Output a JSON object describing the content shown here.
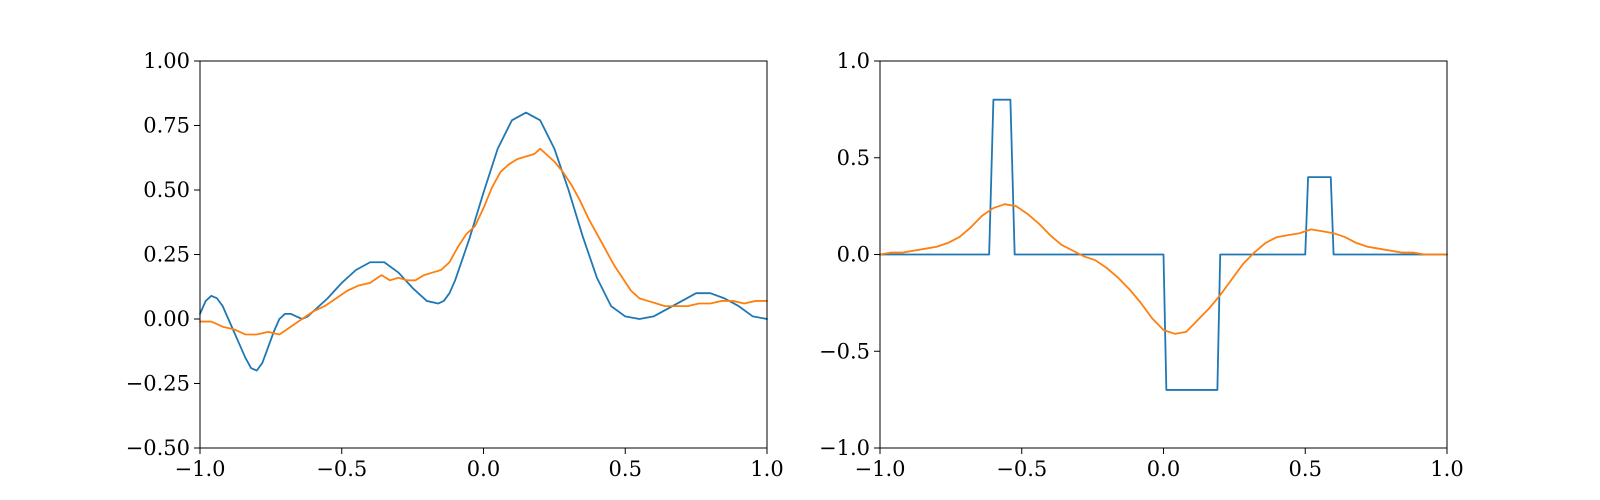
{
  "chart_data": [
    {
      "type": "line",
      "title": "",
      "xlabel": "",
      "ylabel": "",
      "xlim": [
        -1.0,
        1.0
      ],
      "ylim": [
        -0.5,
        1.0
      ],
      "grid": false,
      "xticks": [
        -1.0,
        -0.5,
        0.0,
        0.5,
        1.0
      ],
      "xtick_labels": [
        "−1.0",
        "−0.5",
        "0.0",
        "0.5",
        "1.0"
      ],
      "yticks": [
        -0.5,
        -0.25,
        0.0,
        0.25,
        0.5,
        0.75,
        1.0
      ],
      "ytick_labels": [
        "−0.50",
        "−0.25",
        "0.00",
        "0.25",
        "0.50",
        "0.75",
        "1.00"
      ],
      "series": [
        {
          "color": "#1f77b4",
          "x": [
            -1.0,
            -0.98,
            -0.96,
            -0.94,
            -0.92,
            -0.9,
            -0.88,
            -0.86,
            -0.84,
            -0.82,
            -0.8,
            -0.78,
            -0.76,
            -0.74,
            -0.72,
            -0.7,
            -0.68,
            -0.66,
            -0.64,
            -0.62,
            -0.6,
            -0.55,
            -0.5,
            -0.45,
            -0.4,
            -0.35,
            -0.3,
            -0.25,
            -0.2,
            -0.16,
            -0.14,
            -0.12,
            -0.1,
            -0.05,
            0.0,
            0.05,
            0.1,
            0.15,
            0.2,
            0.25,
            0.3,
            0.35,
            0.4,
            0.45,
            0.5,
            0.55,
            0.6,
            0.65,
            0.7,
            0.75,
            0.8,
            0.85,
            0.9,
            0.95,
            1.0
          ],
          "y": [
            0.02,
            0.07,
            0.09,
            0.08,
            0.05,
            0.0,
            -0.05,
            -0.1,
            -0.15,
            -0.19,
            -0.2,
            -0.17,
            -0.11,
            -0.05,
            0.0,
            0.02,
            0.02,
            0.01,
            0.0,
            0.01,
            0.03,
            0.08,
            0.14,
            0.19,
            0.22,
            0.22,
            0.18,
            0.12,
            0.07,
            0.06,
            0.07,
            0.1,
            0.15,
            0.31,
            0.49,
            0.66,
            0.77,
            0.8,
            0.77,
            0.66,
            0.5,
            0.32,
            0.16,
            0.05,
            0.01,
            0.0,
            0.01,
            0.04,
            0.07,
            0.1,
            0.1,
            0.08,
            0.05,
            0.01,
            0.0
          ]
        },
        {
          "color": "#ff7f0e",
          "x": [
            -1.0,
            -0.96,
            -0.92,
            -0.88,
            -0.84,
            -0.8,
            -0.76,
            -0.72,
            -0.68,
            -0.64,
            -0.6,
            -0.56,
            -0.52,
            -0.48,
            -0.44,
            -0.4,
            -0.36,
            -0.33,
            -0.3,
            -0.27,
            -0.24,
            -0.21,
            -0.18,
            -0.15,
            -0.12,
            -0.09,
            -0.06,
            -0.03,
            0.0,
            0.03,
            0.06,
            0.09,
            0.12,
            0.15,
            0.18,
            0.2,
            0.22,
            0.25,
            0.28,
            0.31,
            0.34,
            0.37,
            0.4,
            0.43,
            0.46,
            0.49,
            0.52,
            0.55,
            0.58,
            0.61,
            0.64,
            0.68,
            0.72,
            0.76,
            0.8,
            0.84,
            0.88,
            0.92,
            0.96,
            1.0
          ],
          "y": [
            -0.01,
            -0.01,
            -0.03,
            -0.04,
            -0.06,
            -0.06,
            -0.05,
            -0.06,
            -0.03,
            0.0,
            0.03,
            0.05,
            0.08,
            0.11,
            0.13,
            0.14,
            0.17,
            0.15,
            0.16,
            0.15,
            0.15,
            0.17,
            0.18,
            0.19,
            0.22,
            0.28,
            0.33,
            0.36,
            0.43,
            0.51,
            0.57,
            0.6,
            0.62,
            0.63,
            0.64,
            0.66,
            0.64,
            0.61,
            0.57,
            0.52,
            0.46,
            0.39,
            0.33,
            0.27,
            0.21,
            0.16,
            0.11,
            0.08,
            0.07,
            0.06,
            0.05,
            0.05,
            0.05,
            0.06,
            0.06,
            0.07,
            0.07,
            0.06,
            0.07,
            0.07
          ]
        }
      ]
    },
    {
      "type": "line",
      "title": "",
      "xlabel": "",
      "ylabel": "",
      "xlim": [
        -1.0,
        1.0
      ],
      "ylim": [
        -1.0,
        1.0
      ],
      "grid": false,
      "xticks": [
        -1.0,
        -0.5,
        0.0,
        0.5,
        1.0
      ],
      "xtick_labels": [
        "−1.0",
        "−0.5",
        "0.0",
        "0.5",
        "1.0"
      ],
      "yticks": [
        -1.0,
        -0.5,
        0.0,
        0.5,
        1.0
      ],
      "ytick_labels": [
        "−1.0",
        "−0.5",
        "0.0",
        "0.5",
        "1.0"
      ],
      "series": [
        {
          "color": "#1f77b4",
          "x": [
            -1.0,
            -0.615,
            -0.6,
            -0.54,
            -0.525,
            0.0,
            0.01,
            0.19,
            0.2,
            0.5,
            0.51,
            0.59,
            0.6,
            1.0
          ],
          "y": [
            0.0,
            0.0,
            0.8,
            0.8,
            0.0,
            0.0,
            -0.7,
            -0.7,
            0.0,
            0.0,
            0.4,
            0.4,
            0.0,
            0.0
          ]
        },
        {
          "color": "#ff7f0e",
          "x": [
            -1.0,
            -0.96,
            -0.92,
            -0.88,
            -0.84,
            -0.8,
            -0.76,
            -0.72,
            -0.68,
            -0.64,
            -0.6,
            -0.56,
            -0.52,
            -0.48,
            -0.44,
            -0.4,
            -0.36,
            -0.32,
            -0.28,
            -0.24,
            -0.2,
            -0.16,
            -0.12,
            -0.08,
            -0.04,
            0.0,
            0.04,
            0.08,
            0.12,
            0.16,
            0.2,
            0.24,
            0.28,
            0.32,
            0.36,
            0.4,
            0.44,
            0.48,
            0.52,
            0.56,
            0.6,
            0.64,
            0.68,
            0.72,
            0.76,
            0.8,
            0.84,
            0.88,
            0.92,
            0.96,
            1.0
          ],
          "y": [
            0.0,
            0.01,
            0.01,
            0.02,
            0.03,
            0.04,
            0.06,
            0.09,
            0.14,
            0.2,
            0.24,
            0.26,
            0.25,
            0.21,
            0.16,
            0.1,
            0.05,
            0.02,
            -0.01,
            -0.03,
            -0.07,
            -0.12,
            -0.18,
            -0.25,
            -0.33,
            -0.39,
            -0.41,
            -0.4,
            -0.34,
            -0.28,
            -0.21,
            -0.13,
            -0.05,
            0.01,
            0.06,
            0.09,
            0.1,
            0.11,
            0.13,
            0.12,
            0.11,
            0.09,
            0.06,
            0.04,
            0.03,
            0.02,
            0.01,
            0.01,
            0.0,
            0.0,
            0.0
          ]
        }
      ]
    }
  ]
}
